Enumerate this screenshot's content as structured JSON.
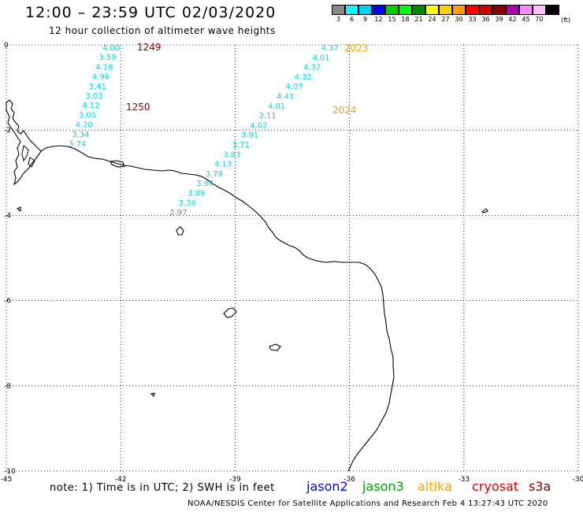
{
  "title": "12:00 – 23:59 UTC 02/03/2020",
  "subtitle": "12 hour collection of altimeter wave heights",
  "legend": {
    "colors": [
      "#888888",
      "#00ffff",
      "#00d0ff",
      "#0000ff",
      "#00d000",
      "#00ff00",
      "#008800",
      "#ffff00",
      "#ffd000",
      "#ffa000",
      "#ff0000",
      "#cc0000",
      "#880000",
      "#b000b0",
      "#ff88ff",
      "#ffc0ff",
      "#000000"
    ],
    "labels": [
      "3",
      "6",
      "9",
      "12",
      "15",
      "18",
      "21",
      "24",
      "27",
      "30",
      "33",
      "36",
      "39",
      "42",
      "45",
      "70"
    ],
    "unit": "(ft)"
  },
  "axes": {
    "x_ticks": [
      "-45",
      "-42",
      "-39",
      "-36",
      "-33",
      "-30"
    ],
    "y_ticks": [
      "0",
      "-2",
      "-4",
      "-6",
      "-8",
      "-10"
    ],
    "xlim": [
      -45,
      -30
    ],
    "ylim": [
      -10,
      0
    ]
  },
  "tracks": [
    {
      "id": "track-a",
      "labels": [
        "4.00",
        "3.59",
        "4.18",
        "4.96",
        "3.41",
        "3.03",
        "4.12",
        "3.05",
        "4.20",
        "3.34",
        "3.74"
      ],
      "colors": [
        "#00d8e8",
        "#00d8e8",
        "#00d8e8",
        "#00d8e8",
        "#00d8e8",
        "#00d8e8",
        "#00d8e8",
        "#00d8e8",
        "#00d8e8",
        "#00d8e8",
        "#00d8e8"
      ]
    },
    {
      "id": "track-b",
      "labels": [
        "4.37",
        "4.01",
        "4.32",
        "4.32",
        "4.07",
        "4.41",
        "4.01",
        "3.11",
        "4.02",
        "3.91",
        "3.71",
        "3.83",
        "4.13",
        "3.79",
        "3.94",
        "3.89",
        "3.36",
        "2.97"
      ],
      "colors": [
        "#00d8e8",
        "#00d8e8",
        "#00d8e8",
        "#00d8e8",
        "#00d8e8",
        "#00d8e8",
        "#00d8e8",
        "#00d8e8",
        "#00d8e8",
        "#00d8e8",
        "#00d8e8",
        "#00d8e8",
        "#00d8e8",
        "#00d8e8",
        "#00d8e8",
        "#00d8e8",
        "#00d8e8",
        "#888888"
      ]
    }
  ],
  "times": [
    {
      "text": "1249",
      "color": "#880000"
    },
    {
      "text": "1250",
      "color": "#880000"
    },
    {
      "text": "2023",
      "color": "#ffa000"
    },
    {
      "text": "2024",
      "color": "#ffa000"
    }
  ],
  "note": "note:  1) Time is in UTC;  2) SWH is in feet",
  "satellites": [
    {
      "name": "jason2",
      "color": "#0000ff"
    },
    {
      "name": "jason3",
      "color": "#009900"
    },
    {
      "name": "altika",
      "color": "#ffa000"
    },
    {
      "name": "cryosat",
      "color": "#dd0000"
    },
    {
      "name": "s3a",
      "color": "#880000"
    }
  ],
  "footer": "NOAA/NESDIS Center for Satellite Applications and Research    Feb  4 13:27:43 UTC 2020"
}
